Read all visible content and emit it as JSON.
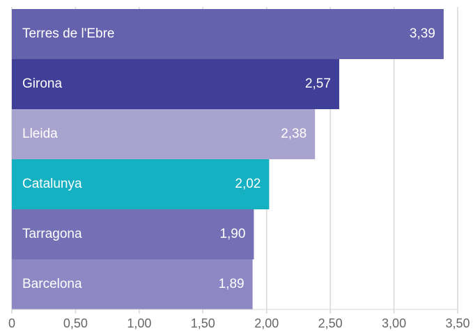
{
  "chart_data": {
    "type": "bar",
    "orientation": "horizontal",
    "categories": [
      "Terres de l'Ebre",
      "Girona",
      "Lleida",
      "Catalunya",
      "Tarragona",
      "Barcelona"
    ],
    "values": [
      3.39,
      2.57,
      2.38,
      2.02,
      1.9,
      1.89
    ],
    "value_labels": [
      "3,39",
      "2,57",
      "2,38",
      "2,02",
      "1,90",
      "1,89"
    ],
    "colors": [
      "#6562ad",
      "#403f98",
      "#a9a3d0",
      "#15b1c3",
      "#7470b5",
      "#8d88c4"
    ],
    "xlim": [
      0,
      3.5
    ],
    "xticks": [
      0,
      {
        "value": 0.5,
        "label": "0,50"
      },
      {
        "value": 1,
        "label": "1,00"
      },
      {
        "value": 1.5,
        "label": "1,50"
      },
      {
        "value": 2,
        "label": "2,00"
      },
      {
        "value": 2.5,
        "label": "2,50"
      },
      {
        "value": 3,
        "label": "3,00"
      },
      {
        "value": 3.5,
        "label": "3,50"
      }
    ],
    "grid": true
  }
}
